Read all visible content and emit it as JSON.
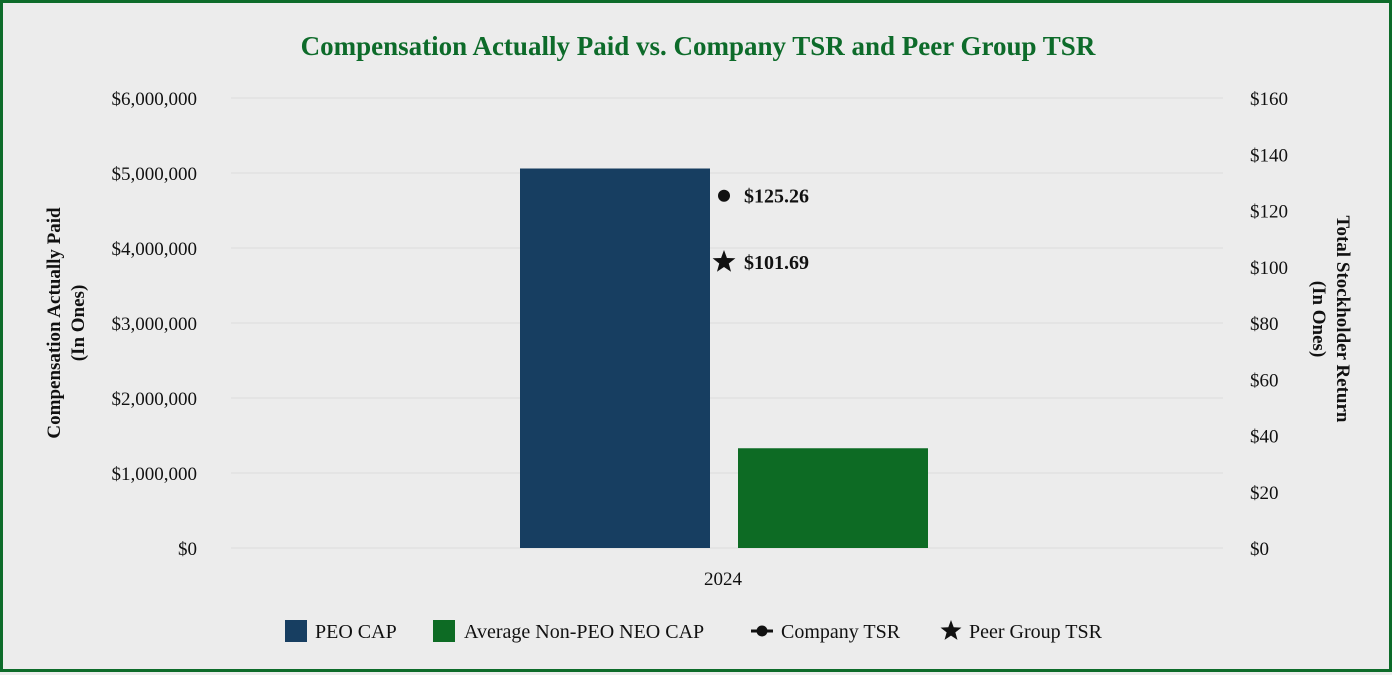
{
  "chart_data": {
    "type": "bar",
    "title": "Compensation Actually Paid vs. Company TSR and Peer Group TSR",
    "categories": [
      "2024"
    ],
    "left_axis": {
      "label_line1": "Compensation Actually Paid",
      "label_line2": "(In Ones)",
      "range": [
        0,
        6000000
      ],
      "ticks": [
        0,
        1000000,
        2000000,
        3000000,
        4000000,
        5000000,
        6000000
      ],
      "tick_labels": [
        "$0",
        "$1,000,000",
        "$2,000,000",
        "$3,000,000",
        "$4,000,000",
        "$5,000,000",
        "$6,000,000"
      ]
    },
    "right_axis": {
      "label_line1": "Total Stockholder Return",
      "label_line2": "(In Ones)",
      "range": [
        0,
        160
      ],
      "ticks": [
        0,
        20,
        40,
        60,
        80,
        100,
        120,
        140,
        160
      ],
      "tick_labels": [
        "$0",
        "$20",
        "$40",
        "$60",
        "$80",
        "$100",
        "$120",
        "$140",
        "$160"
      ]
    },
    "bars": [
      {
        "name": "PEO CAP",
        "values": [
          5060000
        ],
        "color": "#173e61"
      },
      {
        "name": "Average Non-PEO NEO CAP",
        "values": [
          1330000
        ],
        "color": "#0d6b24"
      }
    ],
    "points": [
      {
        "name": "Company TSR",
        "marker": "circle",
        "values": [
          125.26
        ],
        "labels": [
          "$125.26"
        ]
      },
      {
        "name": "Peer Group TSR",
        "marker": "star",
        "values": [
          101.69
        ],
        "labels": [
          "$101.69"
        ]
      }
    ],
    "grid": true,
    "legend_position": "bottom"
  }
}
